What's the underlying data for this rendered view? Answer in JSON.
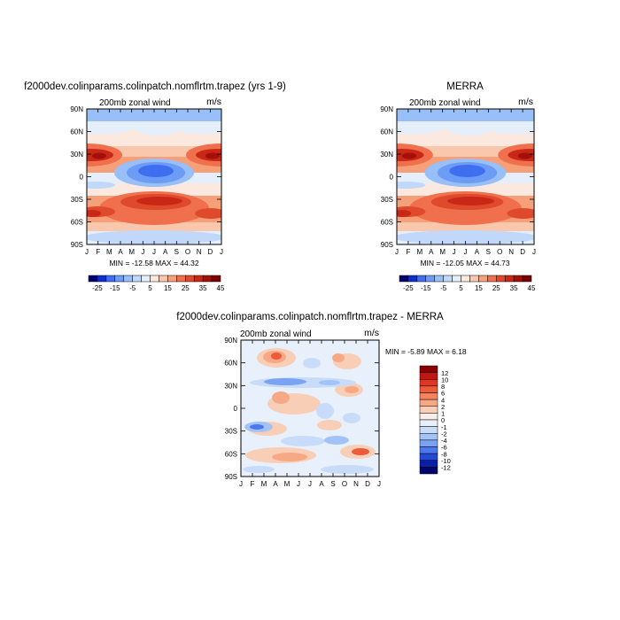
{
  "panels": {
    "top_left": {
      "title": "f2000dev.colinparams.colinpatch.nomflrtm.trapez (yrs 1-9)",
      "subtitle": "200mb  zonal wind",
      "units": "m/s",
      "stats": "MIN = -12.58  MAX =   44.32"
    },
    "top_right": {
      "title": "MERRA",
      "subtitle": "200mb  zonal wind",
      "units": "m/s",
      "stats": "MIN = -12.05  MAX =   44.73"
    },
    "bottom": {
      "title": "f2000dev.colinparams.colinpatch.nomflrtm.trapez - MERRA",
      "subtitle": "200mb  zonal wind",
      "units": "m/s",
      "stats": "MIN =  -5.89  MAX =    6.18"
    }
  },
  "chart_data": [
    {
      "type": "heatmap",
      "title": "f2000dev.colinparams.colinpatch.nomflrtm.trapez (yrs 1-9)",
      "subtitle": "200mb  zonal wind",
      "units": "m/s",
      "x_ticks": [
        "J",
        "F",
        "M",
        "A",
        "M",
        "J",
        "J",
        "A",
        "S",
        "O",
        "N",
        "D",
        "J"
      ],
      "y_ticks": [
        "90N",
        "60N",
        "30N",
        "0",
        "30S",
        "60S",
        "90S"
      ],
      "min": -12.58,
      "max": 44.32,
      "colorbar_labels": [
        "-25",
        "-15",
        "-5",
        "5",
        "15",
        "25",
        "35",
        "45"
      ],
      "colorbar_colors": [
        "#03016b",
        "#0c2fd1",
        "#3f6ff0",
        "#6d9cf6",
        "#99bff8",
        "#c2d8fb",
        "#e5eefb",
        "#fbe9e0",
        "#f9c7ac",
        "#f6a07a",
        "#f0704d",
        "#e04a2c",
        "#c92817",
        "#a3100a",
        "#7d0000"
      ]
    },
    {
      "type": "heatmap",
      "title": "MERRA",
      "subtitle": "200mb  zonal wind",
      "units": "m/s",
      "x_ticks": [
        "J",
        "F",
        "M",
        "A",
        "M",
        "J",
        "J",
        "A",
        "S",
        "O",
        "N",
        "D",
        "J"
      ],
      "y_ticks": [
        "90N",
        "60N",
        "30N",
        "0",
        "30S",
        "60S",
        "90S"
      ],
      "min": -12.05,
      "max": 44.73,
      "colorbar_labels": [
        "-25",
        "-15",
        "-5",
        "5",
        "15",
        "25",
        "35",
        "45"
      ],
      "colorbar_colors": [
        "#03016b",
        "#0c2fd1",
        "#3f6ff0",
        "#6d9cf6",
        "#99bff8",
        "#c2d8fb",
        "#e5eefb",
        "#fbe9e0",
        "#f9c7ac",
        "#f6a07a",
        "#f0704d",
        "#e04a2c",
        "#c92817",
        "#a3100a",
        "#7d0000"
      ]
    },
    {
      "type": "heatmap",
      "title": "f2000dev.colinparams.colinpatch.nomflrtm.trapez - MERRA",
      "subtitle": "200mb  zonal wind",
      "units": "m/s",
      "x_ticks": [
        "J",
        "F",
        "M",
        "A",
        "M",
        "J",
        "J",
        "A",
        "S",
        "O",
        "N",
        "D",
        "J"
      ],
      "y_ticks": [
        "90N",
        "60N",
        "30N",
        "0",
        "30S",
        "60S",
        "90S"
      ],
      "min": -5.89,
      "max": 6.18,
      "colorbar_labels": [
        "12",
        "10",
        "8",
        "6",
        "4",
        "2",
        "1",
        "0",
        "-1",
        "-2",
        "-4",
        "-6",
        "-8",
        "-10",
        "-12"
      ],
      "colorbar_colors": [
        "#8a0000",
        "#c21612",
        "#e0361f",
        "#ee5b3a",
        "#f5835e",
        "#f7a885",
        "#f8cfb6",
        "#fbeee7",
        "#e8f0fb",
        "#c8dcfa",
        "#a3c3f7",
        "#7aa3f3",
        "#4d78ed",
        "#2249d8",
        "#0a1fa6",
        "#02066b"
      ]
    }
  ]
}
